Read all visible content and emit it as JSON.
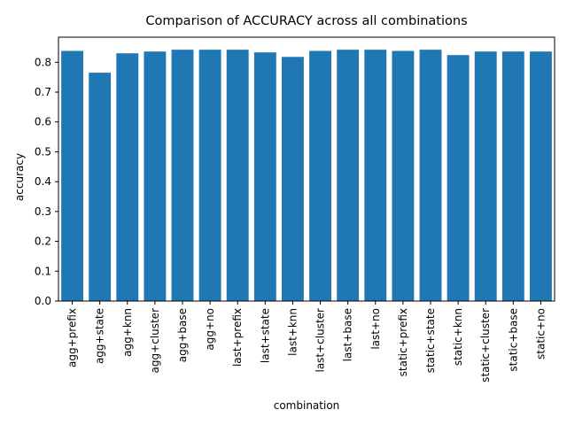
{
  "chart_data": {
    "type": "bar",
    "title": "Comparison of ACCURACY across all combinations",
    "xlabel": "combination",
    "ylabel": "accuracy",
    "categories": [
      "agg+prefix",
      "agg+state",
      "agg+knn",
      "agg+cluster",
      "agg+base",
      "agg+no",
      "last+prefix",
      "last+state",
      "last+knn",
      "last+cluster",
      "last+base",
      "last+no",
      "static+prefix",
      "static+state",
      "static+knn",
      "static+cluster",
      "static+base",
      "static+no"
    ],
    "values": [
      0.838,
      0.765,
      0.83,
      0.836,
      0.842,
      0.842,
      0.842,
      0.833,
      0.818,
      0.838,
      0.842,
      0.842,
      0.838,
      0.842,
      0.824,
      0.836,
      0.836,
      0.836
    ],
    "yticks": [
      "0.0",
      "0.1",
      "0.2",
      "0.3",
      "0.4",
      "0.5",
      "0.6",
      "0.7",
      "0.8"
    ],
    "ylim": [
      0,
      0.884
    ],
    "grid": false,
    "bar_color": "#1f77b4"
  }
}
